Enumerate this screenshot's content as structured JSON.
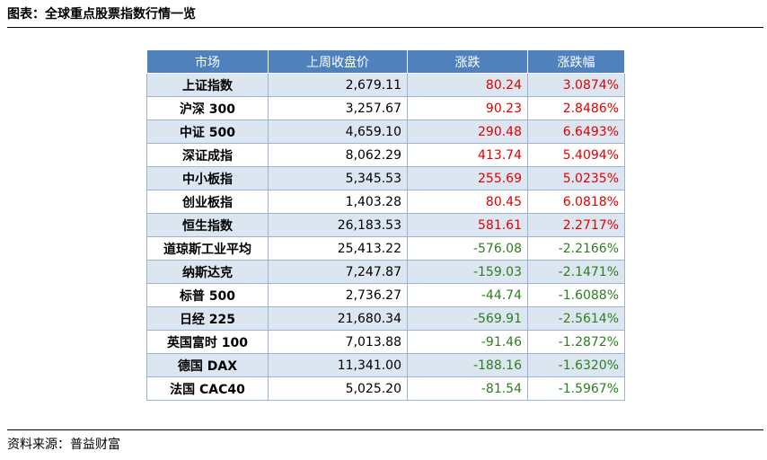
{
  "title": "图表：全球重点股票指数行情一览",
  "source": "资料来源：普益财富",
  "colors": {
    "header_bg": "#4f81bd",
    "row_alt_bg": "#dce6f1",
    "up": "#e00000",
    "down": "#2e7d1f"
  },
  "table": {
    "headers": [
      "市场",
      "上周收盘价",
      "涨跌",
      "涨跌幅"
    ],
    "rows": [
      {
        "name": "上证指数",
        "close": "2,679.11",
        "change": "80.24",
        "pct": "3.0874%",
        "dir": "up"
      },
      {
        "name": "沪深 300",
        "close": "3,257.67",
        "change": "90.23",
        "pct": "2.8486%",
        "dir": "up"
      },
      {
        "name": "中证 500",
        "close": "4,659.10",
        "change": "290.48",
        "pct": "6.6493%",
        "dir": "up"
      },
      {
        "name": "深证成指",
        "close": "8,062.29",
        "change": "413.74",
        "pct": "5.4094%",
        "dir": "up"
      },
      {
        "name": "中小板指",
        "close": "5,345.53",
        "change": "255.69",
        "pct": "5.0235%",
        "dir": "up"
      },
      {
        "name": "创业板指",
        "close": "1,403.28",
        "change": "80.45",
        "pct": "6.0818%",
        "dir": "up"
      },
      {
        "name": "恒生指数",
        "close": "26,183.53",
        "change": "581.61",
        "pct": "2.2717%",
        "dir": "up"
      },
      {
        "name": "道琼斯工业平均",
        "close": "25,413.22",
        "change": "-576.08",
        "pct": "-2.2166%",
        "dir": "down"
      },
      {
        "name": "纳斯达克",
        "close": "7,247.87",
        "change": "-159.03",
        "pct": "-2.1471%",
        "dir": "down"
      },
      {
        "name": "标普 500",
        "close": "2,736.27",
        "change": "-44.74",
        "pct": "-1.6088%",
        "dir": "down"
      },
      {
        "name": "日经 225",
        "close": "21,680.34",
        "change": "-569.91",
        "pct": "-2.5614%",
        "dir": "down"
      },
      {
        "name": "英国富时 100",
        "close": "7,013.88",
        "change": "-91.46",
        "pct": "-1.2872%",
        "dir": "down"
      },
      {
        "name": "德国 DAX",
        "close": "11,341.00",
        "change": "-188.16",
        "pct": "-1.6320%",
        "dir": "down"
      },
      {
        "name": "法国 CAC40",
        "close": "5,025.20",
        "change": "-81.54",
        "pct": "-1.5967%",
        "dir": "down"
      }
    ]
  }
}
